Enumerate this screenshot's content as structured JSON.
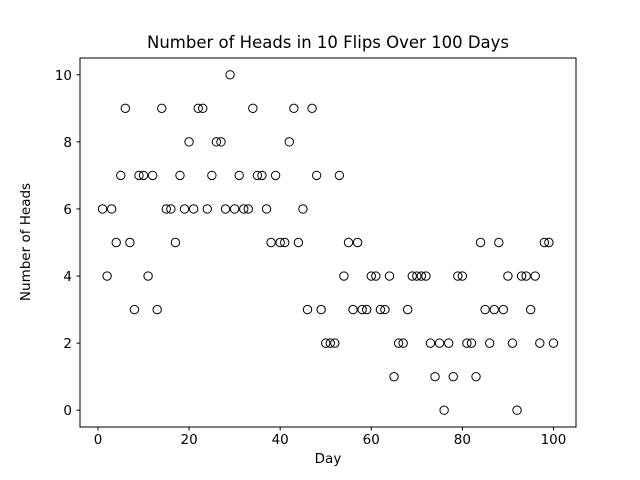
{
  "figure": {
    "background_color": "#ffffff",
    "axes_edge_color": "#000000",
    "marker_color": "#000000"
  },
  "chart_data": {
    "type": "scatter",
    "title": "Number of Heads in 10 Flips Over 100 Days",
    "xlabel": "Day",
    "ylabel": "Number of Heads",
    "legend": "none",
    "grid": false,
    "marker": {
      "shape": "circle",
      "fill": "none",
      "edge_color": "#000000",
      "radius_px": 4.2
    },
    "xlim": [
      -3.95,
      104.95
    ],
    "ylim": [
      -0.5,
      10.5
    ],
    "xticks": [
      0,
      20,
      40,
      60,
      80,
      100
    ],
    "yticks": [
      0,
      2,
      4,
      6,
      8,
      10
    ],
    "x": [
      1,
      2,
      3,
      4,
      5,
      6,
      7,
      8,
      9,
      10,
      11,
      12,
      13,
      14,
      15,
      16,
      17,
      18,
      19,
      20,
      21,
      22,
      23,
      24,
      25,
      26,
      27,
      28,
      29,
      30,
      31,
      32,
      33,
      34,
      35,
      36,
      37,
      38,
      39,
      40,
      41,
      42,
      43,
      44,
      45,
      46,
      47,
      48,
      49,
      50,
      51,
      52,
      53,
      54,
      55,
      56,
      57,
      58,
      59,
      60,
      61,
      62,
      63,
      64,
      65,
      66,
      67,
      68,
      69,
      70,
      71,
      72,
      73,
      74,
      75,
      76,
      77,
      78,
      79,
      80,
      81,
      82,
      83,
      84,
      85,
      86,
      87,
      88,
      89,
      90,
      91,
      92,
      93,
      94,
      95,
      96,
      97,
      98,
      99,
      100
    ],
    "y": [
      6,
      4,
      6,
      5,
      7,
      9,
      5,
      3,
      7,
      7,
      4,
      7,
      3,
      9,
      6,
      6,
      5,
      7,
      6,
      8,
      6,
      9,
      9,
      6,
      7,
      8,
      8,
      6,
      10,
      6,
      7,
      6,
      6,
      9,
      7,
      7,
      6,
      5,
      7,
      5,
      5,
      8,
      9,
      5,
      6,
      3,
      9,
      7,
      3,
      2,
      2,
      2,
      7,
      4,
      5,
      3,
      5,
      3,
      3,
      4,
      4,
      3,
      3,
      4,
      1,
      2,
      2,
      3,
      4,
      4,
      4,
      4,
      2,
      1,
      2,
      0,
      2,
      1,
      4,
      4,
      2,
      2,
      1,
      5,
      3,
      2,
      3,
      5,
      3,
      4,
      2,
      0,
      4,
      4,
      3,
      4,
      2,
      5,
      5,
      2
    ]
  }
}
